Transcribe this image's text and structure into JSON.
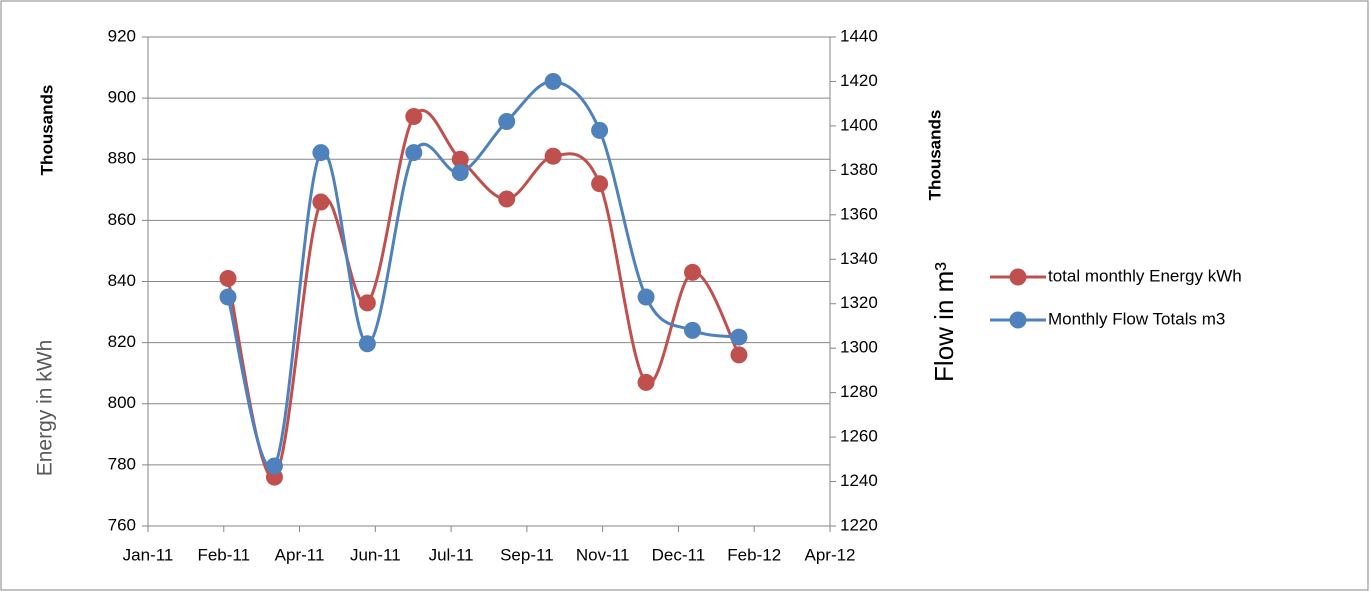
{
  "chart_data": {
    "type": "line",
    "y_axis_unit": "Thousands",
    "y_axis_label": "Energy in kWh",
    "y2_axis_unit": "Thousands",
    "y2_axis_label": "Flow in m³",
    "x_tick_labels": [
      "Jan-11",
      "Feb-11",
      "Apr-11",
      "Jun-11",
      "Jul-11",
      "Sep-11",
      "Nov-11",
      "Dec-11",
      "Feb-12",
      "Apr-12"
    ],
    "series": [
      {
        "name": "total monthly Energy kWh",
        "color": "#c0504d",
        "values": [
          841,
          776,
          866,
          833,
          894,
          880,
          867,
          881,
          872,
          807,
          843,
          816
        ]
      },
      {
        "name": "Monthly Flow Totals m3",
        "color": "#4f81bd",
        "axis": "y2",
        "values": [
          1323,
          1247,
          1388,
          1302,
          1388,
          1379,
          1402,
          1420,
          1398,
          1323,
          1308,
          1305
        ]
      }
    ],
    "ylim": [
      760,
      920
    ],
    "yticks": [
      760,
      780,
      800,
      820,
      840,
      860,
      880,
      900,
      920
    ],
    "y2lim": [
      1220,
      1440
    ],
    "y2ticks": [
      1220,
      1240,
      1260,
      1280,
      1300,
      1320,
      1340,
      1360,
      1380,
      1400,
      1420,
      1440
    ],
    "grid": true,
    "smooth": true,
    "legend": "right"
  }
}
